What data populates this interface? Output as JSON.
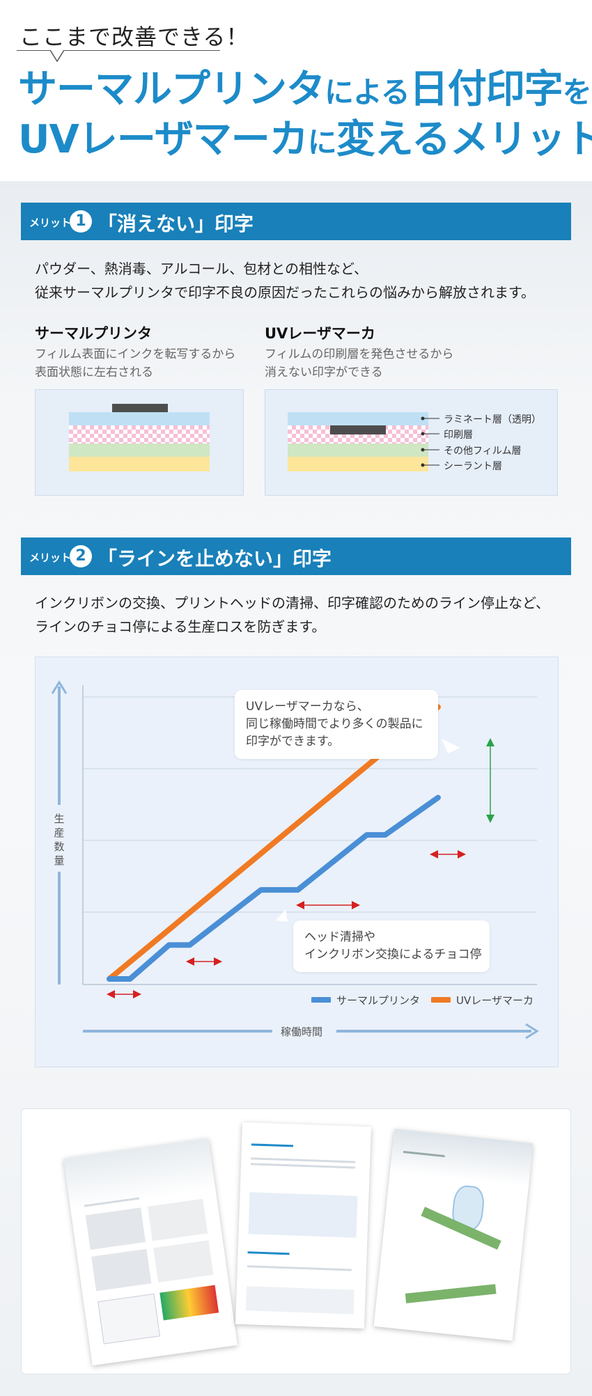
{
  "header": {
    "bubble": "ここまで改善できる！",
    "title_line1_a": "サーマルプリンタ",
    "title_line1_b": "による",
    "title_line1_c": "日付印字",
    "title_line1_d": "を、",
    "title_line2_a": "UVレーザマーカ",
    "title_line2_b": "に",
    "title_line2_c": "変えるメリット"
  },
  "merit1": {
    "tag": "メリット",
    "num": "1",
    "title": "「消えない」印字",
    "para": [
      "パウダー、熱消毒、アルコール、包材との相性など、",
      "従来サーマルプリンタで印字不良の原因だったこれらの悩みから解放されます。"
    ],
    "left_title": "サーマルプリンタ",
    "left_desc": [
      "フィルム表面にインクを転写するから",
      "表面状態に左右される"
    ],
    "right_title": "UVレーザマーカ",
    "right_desc": [
      "フィルムの印刷層を発色させるから",
      "消えない印字ができる"
    ],
    "layers": [
      "ラミネート層（透明）",
      "印刷層",
      "その他フィルム層",
      "シーラント層"
    ]
  },
  "merit2": {
    "tag": "メリット",
    "num": "2",
    "title": "「ラインを止めない」印字",
    "para": [
      "インクリボンの交換、プリントヘッドの清掃、印字確認のためのライン停止など、",
      "ラインのチョコ停による生産ロスを防ぎます。"
    ]
  },
  "chart_data": {
    "type": "line",
    "xlabel": "稼働時間",
    "ylabel": "生産数量",
    "series": [
      {
        "name": "サーマルプリンタ",
        "color": "#4a8fd6",
        "points": [
          [
            0,
            0
          ],
          [
            0.9,
            0
          ],
          [
            2.6,
            1.05
          ],
          [
            3.5,
            1.05
          ],
          [
            6.6,
            2.75
          ],
          [
            8.2,
            2.75
          ],
          [
            11.2,
            4.45
          ],
          [
            12.0,
            4.45
          ],
          [
            14.3,
            5.6
          ]
        ]
      },
      {
        "name": "UVレーザマーカ",
        "color": "#f07a24",
        "points": [
          [
            0,
            0
          ],
          [
            14.3,
            8.4
          ]
        ]
      }
    ],
    "callout_top": [
      "UVレーザマーカなら、",
      "同じ稼働時間でより多くの製品に",
      "印字ができます。"
    ],
    "callout_bottom": [
      "ヘッド清掃や",
      "インクリボン交換によるチョコ停"
    ]
  },
  "colors": {
    "brand_blue": "#1d8bc9",
    "bar_blue": "#1980b9",
    "thermal": "#4a8fd6",
    "uv": "#f07a24"
  }
}
